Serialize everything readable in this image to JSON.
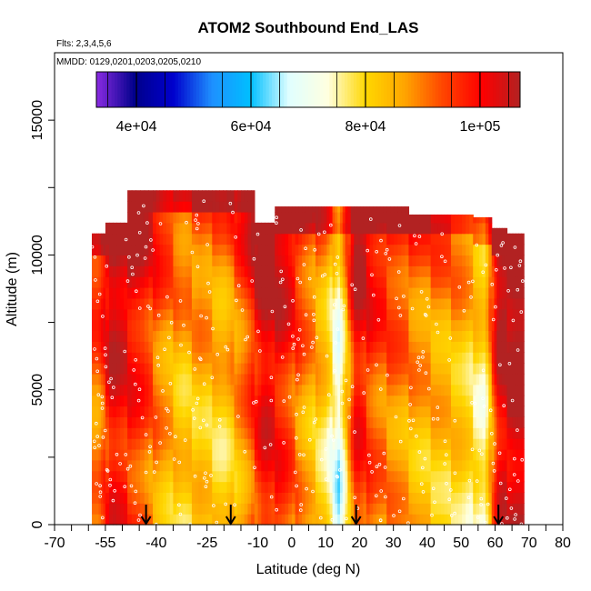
{
  "chart_data": {
    "type": "heatmap",
    "title": "ATOM2 Southbound End_LAS",
    "subtitle_lines": [
      "Flts: 2,3,4,5,6",
      "MMDD: 0129,0201,0203,0205,0210"
    ],
    "xlabel": "Latitude (deg N)",
    "ylabel": "Altitude (m)",
    "xlim": [
      -70,
      80
    ],
    "ylim": [
      0,
      17500
    ],
    "x_tick_labels": [
      "-70",
      "-55",
      "-40",
      "-25",
      "-10",
      "0",
      "10",
      "20",
      "30",
      "40",
      "50",
      "60",
      "70",
      "80"
    ],
    "y_tick_labels": [
      "0",
      "5000",
      "10000",
      "15000"
    ],
    "colorbar": {
      "range": [
        33000,
        107000
      ],
      "tick_labels": [
        "4e+04",
        "6e+04",
        "8e+04",
        "1e+05"
      ],
      "tick_values": [
        40000,
        60000,
        80000,
        100000
      ],
      "colors": [
        "#8a2be2",
        "#00008b",
        "#0000cd",
        "#1e90ff",
        "#00bfff",
        "#e0ffff",
        "#ffffe0",
        "#ffd700",
        "#ffa500",
        "#ff4500",
        "#ff0000",
        "#b22222"
      ]
    },
    "profile_latitudes": [
      -57,
      -53,
      -44,
      -38,
      -32,
      -27,
      -20,
      -14,
      -8,
      -2,
      4,
      10,
      14,
      19,
      25,
      31,
      38,
      44,
      50,
      57,
      61,
      66
    ],
    "profile_values": [
      88000,
      100000,
      93000,
      85000,
      80000,
      82000,
      79000,
      87000,
      100000,
      95000,
      85000,
      78000,
      66000,
      98000,
      90000,
      87000,
      83000,
      82000,
      80000,
      73000,
      100000,
      104000
    ],
    "profile_tops": [
      10800,
      11200,
      12400,
      12400,
      12400,
      12400,
      12400,
      12400,
      11200,
      11800,
      11800,
      11800,
      11800,
      11800,
      11800,
      11800,
      11500,
      11500,
      11500,
      11400,
      11000,
      10800
    ],
    "arrow_latitudes": [
      -43,
      -18,
      19,
      61
    ]
  }
}
